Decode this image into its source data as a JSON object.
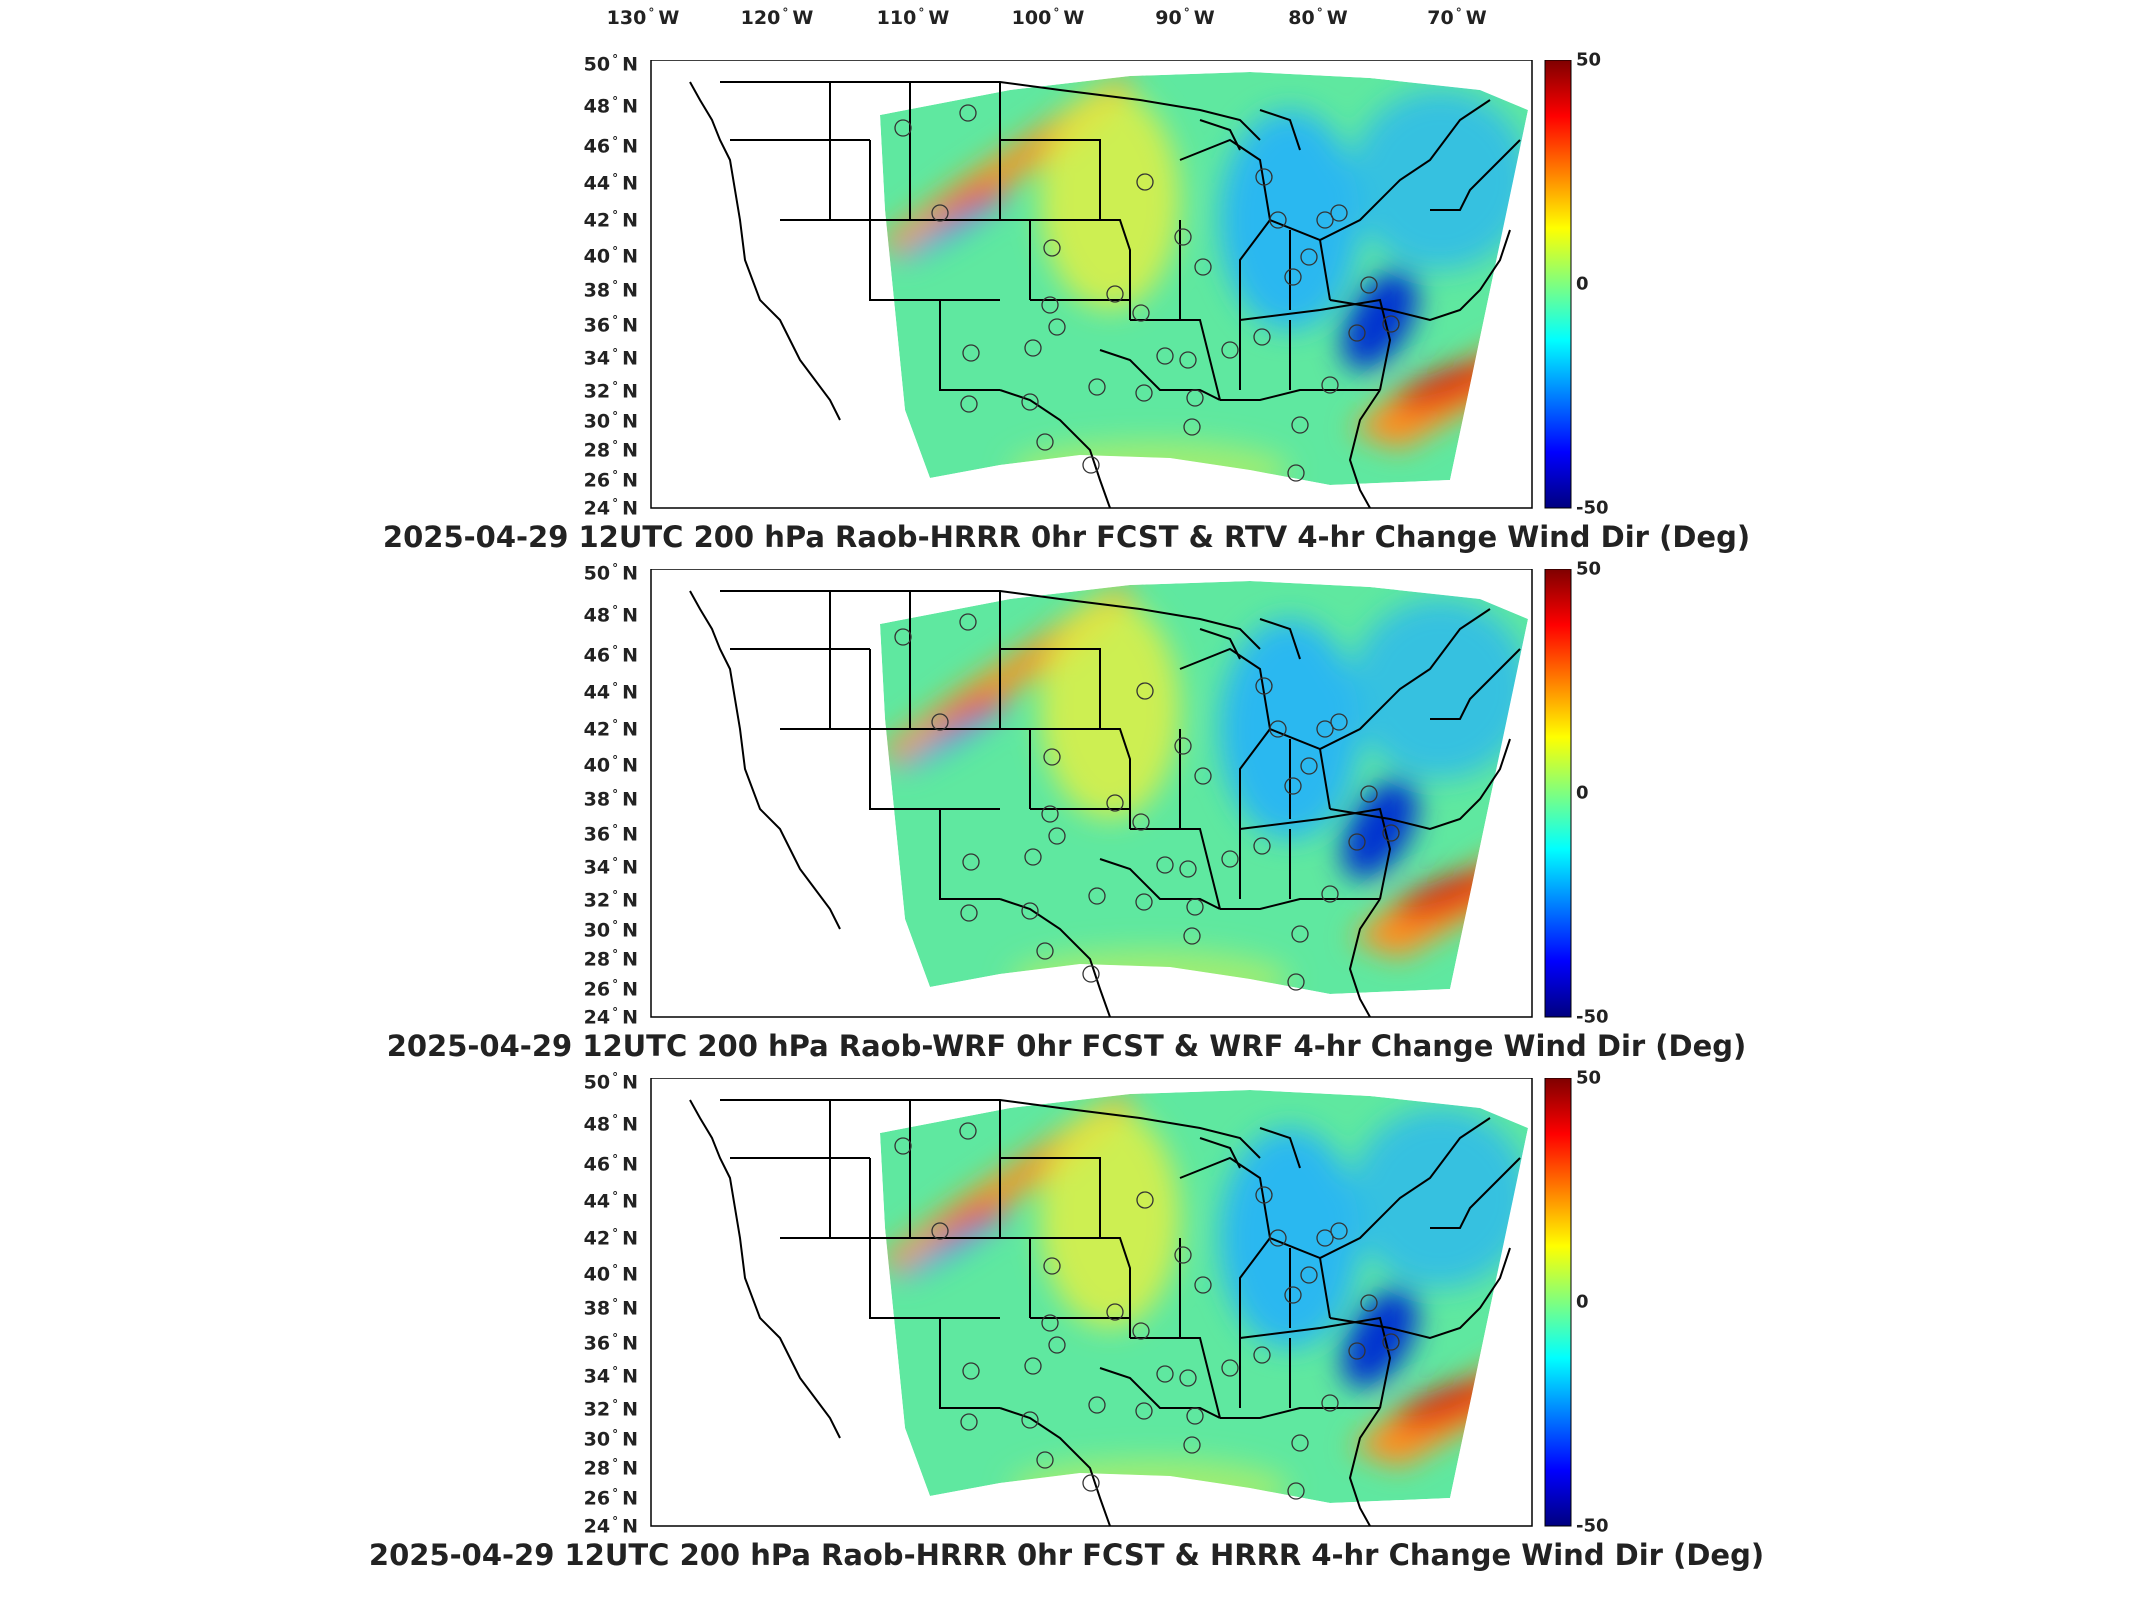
{
  "longitude_labels": [
    "130",
    "120",
    "110",
    "100",
    "90",
    "80",
    "70"
  ],
  "longitude_hemisphere": "W",
  "latitude_labels": [
    "50",
    "48",
    "46",
    "44",
    "42",
    "40",
    "38",
    "36",
    "34",
    "32",
    "30",
    "28",
    "26",
    "24"
  ],
  "latitude_hemisphere": "N",
  "degree_symbol": "°",
  "colorbar": {
    "max": "50",
    "mid": "0",
    "min": "-50",
    "colors": [
      "#00007f",
      "#0000ff",
      "#007fff",
      "#00ffff",
      "#7fff7f",
      "#ffff00",
      "#ff7f00",
      "#ff0000",
      "#7f0000"
    ]
  },
  "panels": [
    {
      "title": "2025-04-29 12UTC 200 hPa Raob-HRRR 0hr FCST & RTV 4-hr Change Wind Dir (Deg)"
    },
    {
      "title": "2025-04-29 12UTC 200 hPa Raob-WRF 0hr FCST & WRF 4-hr Change Wind Dir (Deg)"
    },
    {
      "title": "2025-04-29 12UTC 200 hPa Raob-HRRR 0hr FCST & HRRR 4-hr Change Wind Dir (Deg)"
    }
  ],
  "map_colors": {
    "field_base": "#5fe8a0",
    "warm_band": "#ff9020",
    "hot_band": "#e02010",
    "cool_area": "#2ab8f0",
    "cold_core": "#0030d0",
    "borders": "#000000"
  }
}
